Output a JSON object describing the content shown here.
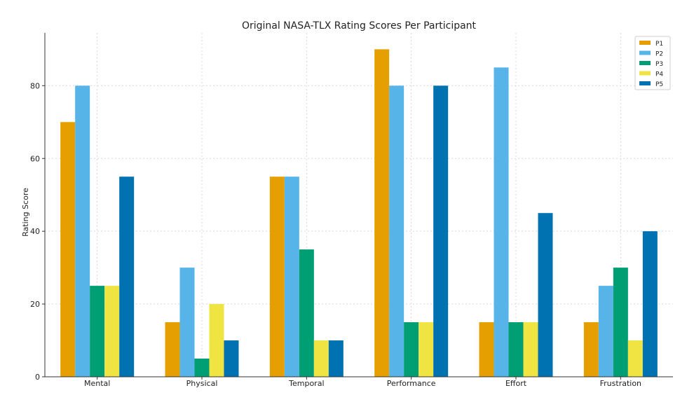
{
  "chart_data": {
    "type": "bar",
    "title": "Original NASA-TLX Rating Scores Per Participant",
    "xlabel": "",
    "ylabel": "Rating Score",
    "categories": [
      "Mental",
      "Physical",
      "Temporal",
      "Performance",
      "Effort",
      "Frustration"
    ],
    "series": [
      {
        "name": "P1",
        "color": "#E69F00",
        "values": [
          70,
          15,
          55,
          90,
          15,
          15
        ]
      },
      {
        "name": "P2",
        "color": "#56B4E9",
        "values": [
          80,
          30,
          55,
          80,
          85,
          25
        ]
      },
      {
        "name": "P3",
        "color": "#009E73",
        "values": [
          25,
          5,
          35,
          15,
          15,
          30
        ]
      },
      {
        "name": "P4",
        "color": "#F0E442",
        "values": [
          25,
          20,
          10,
          15,
          15,
          10
        ]
      },
      {
        "name": "P5",
        "color": "#0072B2",
        "values": [
          55,
          10,
          10,
          80,
          45,
          40
        ]
      }
    ],
    "yticks": [
      0,
      20,
      40,
      60,
      80
    ],
    "ylim": [
      0,
      94.5
    ],
    "grid": true,
    "legend_position": "top-right"
  }
}
